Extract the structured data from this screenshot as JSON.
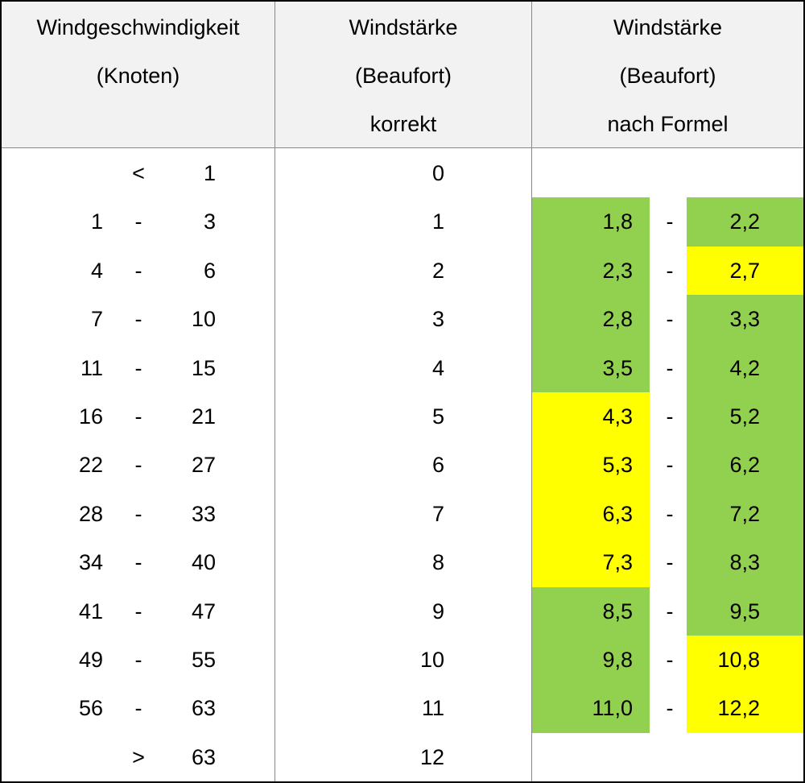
{
  "table": {
    "header": [
      [
        "Windgeschwindigkeit",
        "(Knoten)"
      ],
      [
        "Windstärke",
        "(Beaufort)",
        "korrekt"
      ],
      [
        "Windstärke",
        "(Beaufort)",
        "nach Formel"
      ]
    ],
    "rows": [
      {
        "knots_from": null,
        "knots_sep": "<",
        "knots_to": "1",
        "beaufort": "0",
        "formula": null
      },
      {
        "knots_from": "1",
        "knots_sep": "-",
        "knots_to": "3",
        "beaufort": "1",
        "formula": {
          "from": "1,8",
          "sep": "-",
          "to": "2,2",
          "from_color": "#92d050",
          "to_color": "#92d050"
        }
      },
      {
        "knots_from": "4",
        "knots_sep": "-",
        "knots_to": "6",
        "beaufort": "2",
        "formula": {
          "from": "2,3",
          "sep": "-",
          "to": "2,7",
          "from_color": "#92d050",
          "to_color": "#ffff00"
        }
      },
      {
        "knots_from": "7",
        "knots_sep": "-",
        "knots_to": "10",
        "beaufort": "3",
        "formula": {
          "from": "2,8",
          "sep": "-",
          "to": "3,3",
          "from_color": "#92d050",
          "to_color": "#92d050"
        }
      },
      {
        "knots_from": "11",
        "knots_sep": "-",
        "knots_to": "15",
        "beaufort": "4",
        "formula": {
          "from": "3,5",
          "sep": "-",
          "to": "4,2",
          "from_color": "#92d050",
          "to_color": "#92d050"
        }
      },
      {
        "knots_from": "16",
        "knots_sep": "-",
        "knots_to": "21",
        "beaufort": "5",
        "formula": {
          "from": "4,3",
          "sep": "-",
          "to": "5,2",
          "from_color": "#ffff00",
          "to_color": "#92d050"
        }
      },
      {
        "knots_from": "22",
        "knots_sep": "-",
        "knots_to": "27",
        "beaufort": "6",
        "formula": {
          "from": "5,3",
          "sep": "-",
          "to": "6,2",
          "from_color": "#ffff00",
          "to_color": "#92d050"
        }
      },
      {
        "knots_from": "28",
        "knots_sep": "-",
        "knots_to": "33",
        "beaufort": "7",
        "formula": {
          "from": "6,3",
          "sep": "-",
          "to": "7,2",
          "from_color": "#ffff00",
          "to_color": "#92d050"
        }
      },
      {
        "knots_from": "34",
        "knots_sep": "-",
        "knots_to": "40",
        "beaufort": "8",
        "formula": {
          "from": "7,3",
          "sep": "-",
          "to": "8,3",
          "from_color": "#ffff00",
          "to_color": "#92d050"
        }
      },
      {
        "knots_from": "41",
        "knots_sep": "-",
        "knots_to": "47",
        "beaufort": "9",
        "formula": {
          "from": "8,5",
          "sep": "-",
          "to": "9,5",
          "from_color": "#92d050",
          "to_color": "#92d050"
        }
      },
      {
        "knots_from": "49",
        "knots_sep": "-",
        "knots_to": "55",
        "beaufort": "10",
        "formula": {
          "from": "9,8",
          "sep": "-",
          "to": "10,8",
          "from_color": "#92d050",
          "to_color": "#ffff00"
        }
      },
      {
        "knots_from": "56",
        "knots_sep": "-",
        "knots_to": "63",
        "beaufort": "11",
        "formula": {
          "from": "11,0",
          "sep": "-",
          "to": "12,2",
          "from_color": "#92d050",
          "to_color": "#ffff00"
        }
      },
      {
        "knots_from": null,
        "knots_sep": ">",
        "knots_to": "63",
        "beaufort": "12",
        "formula": null
      }
    ]
  }
}
